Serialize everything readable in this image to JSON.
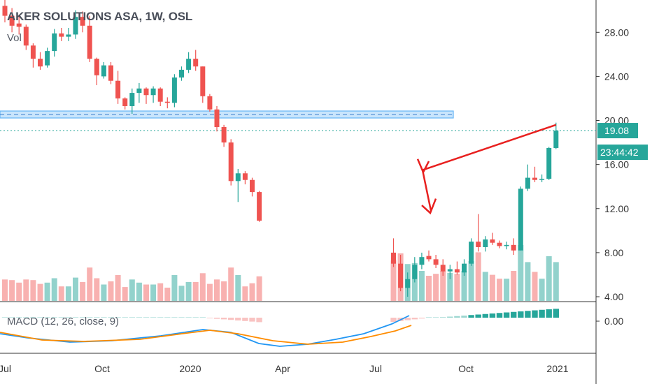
{
  "header": {
    "symbol_line": "AKER SOLUTIONS ASA, 1W, OSL",
    "volume_label": "Vol",
    "macd_label": "MACD (12, 26, close, 9)"
  },
  "price_tag": {
    "value": "19.08",
    "color": "#26a69a"
  },
  "countdown_tag": {
    "value": "23:44:42",
    "color": "#26a69a"
  },
  "colors": {
    "up": "#26a69a",
    "down": "#ef5350",
    "macd_line": "#2196f3",
    "signal_line": "#ff8c00",
    "zone": "#64b5f6",
    "arrow": "#e8201f"
  },
  "chart_data": {
    "type": "candlestick",
    "title": "AKER SOLUTIONS ASA, 1W, OSL",
    "interval": "1W",
    "y_ticks": [
      "28.00",
      "24.00",
      "20.00",
      "16.00",
      "12.00",
      "8.00",
      "4.00"
    ],
    "macd_ticks": [
      "0.00"
    ],
    "x_ticks": [
      "Jul",
      "Oct",
      "2020",
      "Apr",
      "Jul",
      "Oct",
      "2021"
    ],
    "ylim": [
      3.6,
      31.2
    ],
    "candles": [
      {
        "o": 30.4,
        "h": 31.2,
        "l": 28.9,
        "c": 29.5
      },
      {
        "o": 29.5,
        "h": 30.2,
        "l": 28.0,
        "c": 28.6
      },
      {
        "o": 28.8,
        "h": 29.6,
        "l": 27.8,
        "c": 28.5
      },
      {
        "o": 28.5,
        "h": 28.7,
        "l": 26.4,
        "c": 26.8
      },
      {
        "o": 26.8,
        "h": 27.0,
        "l": 24.8,
        "c": 25.6
      },
      {
        "o": 25.6,
        "h": 26.2,
        "l": 24.6,
        "c": 24.9
      },
      {
        "o": 25.0,
        "h": 26.6,
        "l": 24.8,
        "c": 26.3
      },
      {
        "o": 26.3,
        "h": 28.3,
        "l": 25.8,
        "c": 27.9
      },
      {
        "o": 27.9,
        "h": 28.4,
        "l": 27.2,
        "c": 27.6
      },
      {
        "o": 27.6,
        "h": 28.4,
        "l": 27.2,
        "c": 27.8
      },
      {
        "o": 27.8,
        "h": 30.0,
        "l": 27.4,
        "c": 29.4
      },
      {
        "o": 29.4,
        "h": 29.9,
        "l": 28.0,
        "c": 28.6
      },
      {
        "o": 28.6,
        "h": 29.5,
        "l": 25.3,
        "c": 25.6
      },
      {
        "o": 25.6,
        "h": 25.7,
        "l": 23.2,
        "c": 24.1
      },
      {
        "o": 24.0,
        "h": 25.3,
        "l": 23.8,
        "c": 25.0
      },
      {
        "o": 25.0,
        "h": 25.3,
        "l": 23.3,
        "c": 23.6
      },
      {
        "o": 23.6,
        "h": 24.5,
        "l": 21.5,
        "c": 22.0
      },
      {
        "o": 22.0,
        "h": 22.1,
        "l": 21.0,
        "c": 21.3
      },
      {
        "o": 21.3,
        "h": 22.9,
        "l": 20.6,
        "c": 22.5
      },
      {
        "o": 22.5,
        "h": 23.4,
        "l": 21.6,
        "c": 22.9
      },
      {
        "o": 22.9,
        "h": 23.0,
        "l": 21.5,
        "c": 22.3
      },
      {
        "o": 22.3,
        "h": 23.1,
        "l": 21.6,
        "c": 22.9
      },
      {
        "o": 22.9,
        "h": 23.0,
        "l": 21.3,
        "c": 21.7
      },
      {
        "o": 21.7,
        "h": 22.1,
        "l": 21.1,
        "c": 21.6
      },
      {
        "o": 21.6,
        "h": 24.2,
        "l": 21.2,
        "c": 23.9
      },
      {
        "o": 23.9,
        "h": 24.9,
        "l": 23.6,
        "c": 24.6
      },
      {
        "o": 24.6,
        "h": 26.2,
        "l": 24.3,
        "c": 25.6
      },
      {
        "o": 25.6,
        "h": 26.4,
        "l": 24.5,
        "c": 24.9
      },
      {
        "o": 24.9,
        "h": 24.9,
        "l": 21.6,
        "c": 22.2
      },
      {
        "o": 22.2,
        "h": 22.4,
        "l": 20.8,
        "c": 21.0
      },
      {
        "o": 21.0,
        "h": 21.3,
        "l": 19.0,
        "c": 19.4
      },
      {
        "o": 19.4,
        "h": 19.6,
        "l": 17.6,
        "c": 18.0
      },
      {
        "o": 18.0,
        "h": 18.3,
        "l": 14.1,
        "c": 14.5
      },
      {
        "o": 14.5,
        "h": 15.6,
        "l": 12.6,
        "c": 15.2
      },
      {
        "o": 15.2,
        "h": 15.4,
        "l": 14.2,
        "c": 14.6
      },
      {
        "o": 14.6,
        "h": 14.8,
        "l": 13.1,
        "c": 13.5
      },
      {
        "o": 13.5,
        "h": 13.6,
        "l": 10.8,
        "c": 10.9
      }
    ],
    "gap_weeks": 18,
    "candles2": [
      {
        "o": 8.0,
        "h": 9.3,
        "l": 6.7,
        "c": 7.0
      },
      {
        "o": 7.0,
        "h": 7.8,
        "l": 4.5,
        "c": 4.8
      },
      {
        "o": 4.8,
        "h": 6.2,
        "l": 4.0,
        "c": 5.6
      },
      {
        "o": 5.6,
        "h": 7.6,
        "l": 5.3,
        "c": 6.9
      },
      {
        "o": 6.9,
        "h": 8.0,
        "l": 6.5,
        "c": 7.6
      },
      {
        "o": 7.7,
        "h": 8.2,
        "l": 7.2,
        "c": 7.4
      },
      {
        "o": 7.4,
        "h": 7.8,
        "l": 6.6,
        "c": 6.9
      },
      {
        "o": 6.9,
        "h": 7.4,
        "l": 5.9,
        "c": 6.3
      },
      {
        "o": 6.3,
        "h": 6.9,
        "l": 5.6,
        "c": 6.5
      },
      {
        "o": 6.5,
        "h": 7.2,
        "l": 6.0,
        "c": 6.2
      },
      {
        "o": 6.2,
        "h": 7.4,
        "l": 5.9,
        "c": 7.0
      },
      {
        "o": 7.0,
        "h": 9.3,
        "l": 6.8,
        "c": 9.0
      },
      {
        "o": 9.0,
        "h": 11.5,
        "l": 8.1,
        "c": 8.5
      },
      {
        "o": 8.5,
        "h": 9.5,
        "l": 8.1,
        "c": 9.2
      },
      {
        "o": 9.2,
        "h": 9.8,
        "l": 8.7,
        "c": 8.9
      },
      {
        "o": 8.9,
        "h": 9.1,
        "l": 8.4,
        "c": 8.6
      },
      {
        "o": 8.6,
        "h": 9.0,
        "l": 8.3,
        "c": 8.7
      },
      {
        "o": 8.7,
        "h": 9.3,
        "l": 7.8,
        "c": 8.2
      },
      {
        "o": 8.2,
        "h": 14.0,
        "l": 8.2,
        "c": 13.8
      },
      {
        "o": 13.8,
        "h": 16.0,
        "l": 13.6,
        "c": 14.8
      },
      {
        "o": 14.8,
        "h": 15.8,
        "l": 14.4,
        "c": 14.6
      },
      {
        "o": 14.6,
        "h": 15.1,
        "l": 14.4,
        "c": 14.7
      },
      {
        "o": 14.7,
        "h": 17.6,
        "l": 14.6,
        "c": 17.5
      },
      {
        "o": 17.5,
        "h": 19.8,
        "l": 17.4,
        "c": 19.08
      }
    ]
  }
}
